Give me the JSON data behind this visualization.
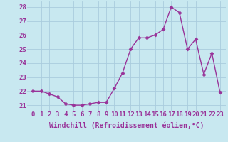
{
  "x": [
    0,
    1,
    2,
    3,
    4,
    5,
    6,
    7,
    8,
    9,
    10,
    11,
    12,
    13,
    14,
    15,
    16,
    17,
    18,
    19,
    20,
    21,
    22,
    23
  ],
  "y": [
    22.0,
    22.0,
    21.8,
    21.6,
    21.1,
    21.0,
    21.0,
    21.1,
    21.2,
    21.2,
    22.2,
    23.3,
    25.0,
    25.8,
    25.8,
    26.0,
    26.4,
    28.0,
    27.6,
    25.0,
    25.7,
    23.2,
    24.7,
    21.9
  ],
  "line_color": "#993399",
  "marker": "D",
  "marker_size": 2.5,
  "bg_color": "#c8e8f0",
  "grid_color": "#aaccdd",
  "xlabel": "Windchill (Refroidissement éolien,°C)",
  "ylabel": "",
  "ylim": [
    20.6,
    28.4
  ],
  "yticks": [
    21,
    22,
    23,
    24,
    25,
    26,
    27,
    28
  ],
  "xticks": [
    0,
    1,
    2,
    3,
    4,
    5,
    6,
    7,
    8,
    9,
    10,
    11,
    12,
    13,
    14,
    15,
    16,
    17,
    18,
    19,
    20,
    21,
    22,
    23
  ],
  "xlabel_fontsize": 7.0,
  "tick_fontsize": 6.5,
  "line_width": 1.0,
  "tick_color": "#993399",
  "label_color": "#993399"
}
